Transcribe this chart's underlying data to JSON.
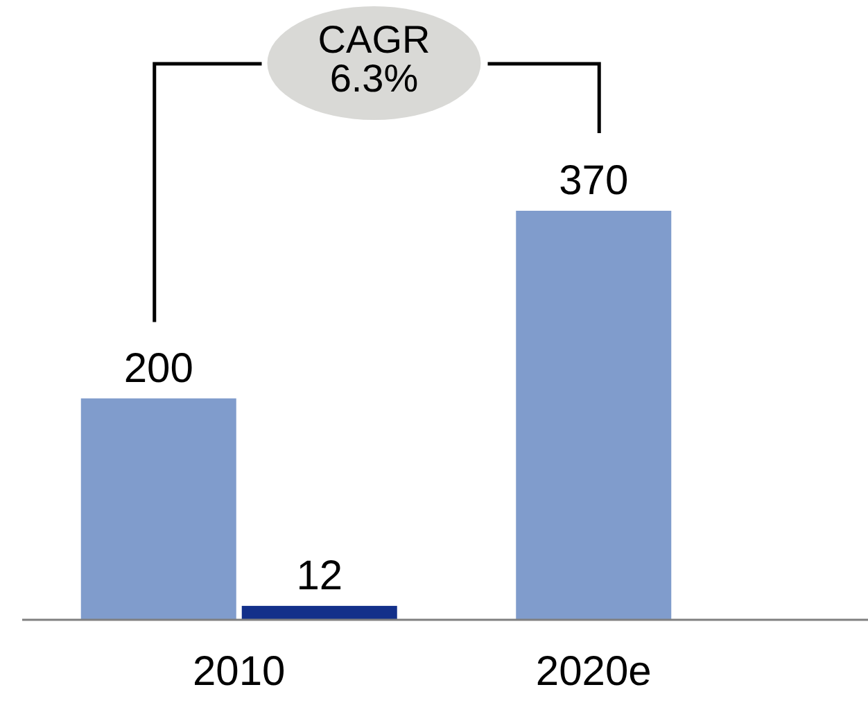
{
  "chart_data": {
    "type": "bar",
    "categories": [
      "2010",
      "2020e"
    ],
    "series": [
      {
        "color": "#809ccc",
        "values": [
          200,
          370
        ]
      },
      {
        "color": "#13308a",
        "values": [
          12,
          null
        ]
      }
    ],
    "data_labels": true,
    "annotations": [
      "CAGR 6.3%"
    ]
  }
}
